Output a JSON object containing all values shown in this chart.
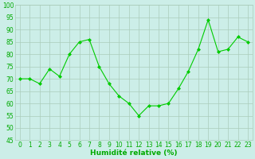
{
  "x": [
    0,
    1,
    2,
    3,
    4,
    5,
    6,
    7,
    8,
    9,
    10,
    11,
    12,
    13,
    14,
    15,
    16,
    17,
    18,
    19,
    20,
    21,
    22,
    23
  ],
  "y": [
    70,
    70,
    68,
    74,
    71,
    80,
    85,
    86,
    75,
    68,
    63,
    60,
    55,
    59,
    59,
    60,
    66,
    73,
    82,
    94,
    81,
    82,
    87,
    85
  ],
  "line_color": "#00cc00",
  "marker": "D",
  "marker_size": 2,
  "bg_color": "#cceee8",
  "grid_color": "#aaccbb",
  "xlabel": "Humidité relative (%)",
  "xlabel_color": "#00aa00",
  "tick_color": "#00aa00",
  "ylim": [
    45,
    100
  ],
  "yticks": [
    45,
    50,
    55,
    60,
    65,
    70,
    75,
    80,
    85,
    90,
    95,
    100
  ],
  "xlim": [
    -0.5,
    23.5
  ],
  "label_fontsize": 6.5,
  "tick_fontsize": 5.5,
  "linewidth": 0.8
}
